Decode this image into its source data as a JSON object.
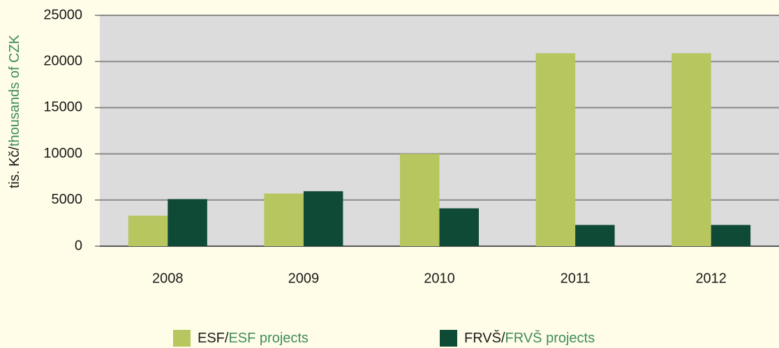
{
  "chart_data": {
    "type": "bar",
    "ylabel": [
      "tis. Kč/",
      "thousands of CZK"
    ],
    "categories": [
      "2008",
      "2009",
      "2010",
      "2011",
      "2012"
    ],
    "series": [
      {
        "name": "ESF/ESF projects",
        "color": "#b7c65e",
        "values": [
          3300,
          5700,
          10000,
          20900,
          20900
        ]
      },
      {
        "name": "FRVŠ/FRVŠ projects",
        "color": "#0e4a35",
        "values": [
          5100,
          5950,
          4100,
          2300,
          2300
        ]
      }
    ],
    "ylim": [
      0,
      25000
    ],
    "yticks": [
      0,
      5000,
      10000,
      15000,
      20000,
      25000
    ],
    "grid": true,
    "legend": "bottom"
  }
}
